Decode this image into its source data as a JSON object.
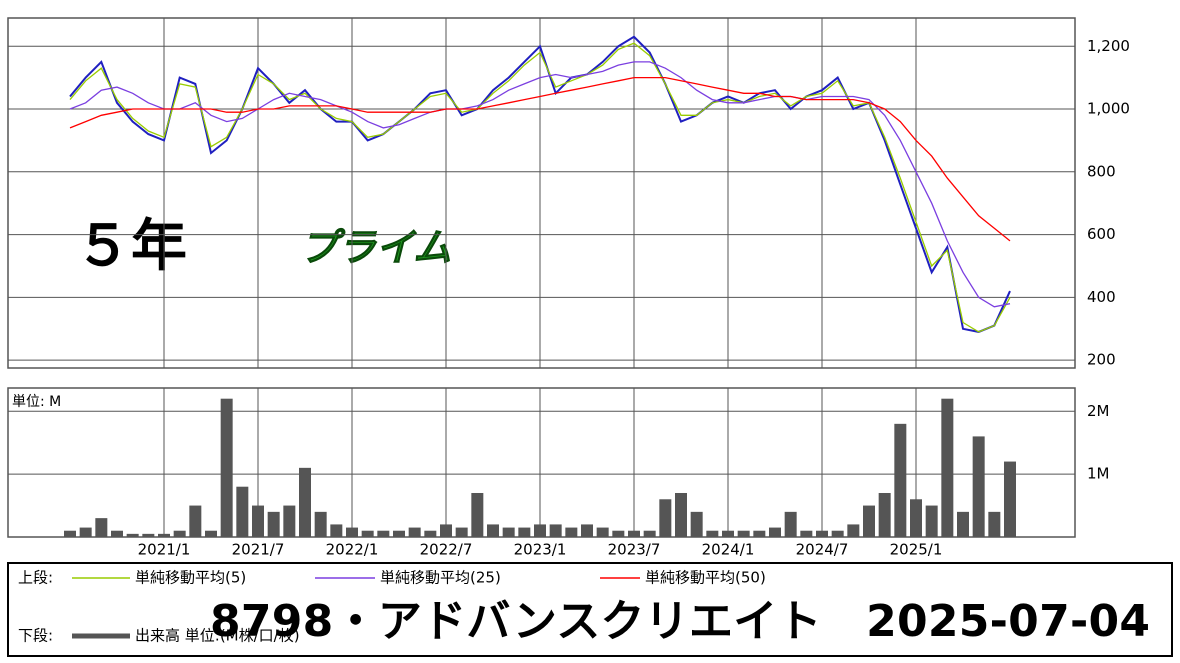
{
  "chart_data": [
    {
      "type": "line",
      "title": "8798・アドバンスクリエイト　2025-07-04",
      "annotations": [
        "５年",
        "プライム",
        "上段:"
      ],
      "ylim": [
        175,
        1290
      ],
      "yticks": [
        200,
        400,
        600,
        800,
        {
          "value": 1000,
          "label": "1,000"
        },
        {
          "value": 1200,
          "label": "1,200"
        }
      ],
      "grid": true,
      "series": [
        {
          "color": "#2020c0",
          "values": [
            1040,
            1100,
            1150,
            1020,
            960,
            920,
            900,
            1100,
            1080,
            860,
            900,
            1000,
            1130,
            1080,
            1020,
            1060,
            1000,
            960,
            960,
            900,
            920,
            960,
            1000,
            1050,
            1060,
            980,
            1000,
            1060,
            1100,
            1150,
            1200,
            1050,
            1100,
            1110,
            1150,
            1200,
            1230,
            1180,
            1080,
            960,
            980,
            1020,
            1040,
            1020,
            1050,
            1060,
            1000,
            1040,
            1060,
            1100,
            1000,
            1020,
            900,
            760,
            620,
            480,
            560,
            300,
            290,
            310,
            420
          ]
        },
        {
          "name": "単純移動平均(5)",
          "color": "#99cc00",
          "values": [
            1030,
            1090,
            1130,
            1030,
            970,
            930,
            910,
            1080,
            1070,
            880,
            910,
            1000,
            1110,
            1080,
            1030,
            1050,
            1000,
            970,
            960,
            910,
            920,
            960,
            1000,
            1040,
            1050,
            990,
            1000,
            1050,
            1090,
            1140,
            1180,
            1070,
            1090,
            1110,
            1140,
            1190,
            1210,
            1170,
            1080,
            980,
            980,
            1020,
            1030,
            1020,
            1040,
            1050,
            1010,
            1040,
            1050,
            1090,
            1010,
            1020,
            910,
            780,
            640,
            500,
            550,
            320,
            290,
            310,
            400
          ]
        },
        {
          "name": "単純移動平均(25)",
          "color": "#7b3fe0",
          "values": [
            1000,
            1020,
            1060,
            1070,
            1050,
            1020,
            1000,
            1000,
            1020,
            980,
            960,
            970,
            1000,
            1030,
            1050,
            1040,
            1030,
            1010,
            990,
            960,
            940,
            950,
            970,
            990,
            1000,
            1000,
            1010,
            1030,
            1060,
            1080,
            1100,
            1110,
            1100,
            1110,
            1120,
            1140,
            1150,
            1150,
            1130,
            1100,
            1060,
            1030,
            1020,
            1020,
            1030,
            1040,
            1040,
            1030,
            1040,
            1040,
            1040,
            1030,
            980,
            900,
            800,
            700,
            580,
            480,
            400,
            370,
            380
          ]
        },
        {
          "name": "単純移動平均(50)",
          "color": "#ff0000",
          "values": [
            940,
            960,
            980,
            990,
            1000,
            1000,
            1000,
            1000,
            1000,
            1000,
            990,
            990,
            1000,
            1000,
            1010,
            1010,
            1010,
            1010,
            1000,
            990,
            990,
            990,
            990,
            990,
            1000,
            1000,
            1000,
            1010,
            1020,
            1030,
            1040,
            1050,
            1060,
            1070,
            1080,
            1090,
            1100,
            1100,
            1100,
            1090,
            1080,
            1070,
            1060,
            1050,
            1050,
            1040,
            1040,
            1030,
            1030,
            1030,
            1030,
            1020,
            1000,
            960,
            900,
            850,
            780,
            720,
            660,
            620,
            580
          ]
        }
      ]
    },
    {
      "type": "bar",
      "ylabel": "単位: M",
      "annotations": [
        "下段:"
      ],
      "categories": [
        null,
        null,
        null,
        null,
        null,
        null,
        "2021/1",
        null,
        null,
        null,
        null,
        null,
        "2021/7",
        null,
        null,
        null,
        null,
        null,
        "2022/1",
        null,
        null,
        null,
        null,
        null,
        "2022/7",
        null,
        null,
        null,
        null,
        null,
        "2023/1",
        null,
        null,
        null,
        null,
        null,
        "2023/7",
        null,
        null,
        null,
        null,
        null,
        "2024/1",
        null,
        null,
        null,
        null,
        null,
        "2024/7",
        null,
        null,
        null,
        null,
        null,
        "2025/1",
        null,
        null,
        null,
        null,
        null,
        null
      ],
      "ylim": [
        0,
        2.37
      ],
      "yticks": [
        {
          "value": 1,
          "label": "1M"
        },
        {
          "value": 2,
          "label": "2M"
        }
      ],
      "grid": true,
      "series": [
        {
          "name": "出来高 単位:(M株/口/枚)",
          "color": "#555555",
          "values": [
            0.1,
            0.15,
            0.3,
            0.1,
            0.05,
            0.05,
            0.05,
            0.1,
            0.5,
            0.1,
            2.2,
            0.8,
            0.5,
            0.4,
            0.5,
            1.1,
            0.4,
            0.2,
            0.15,
            0.1,
            0.1,
            0.1,
            0.15,
            0.1,
            0.2,
            0.15,
            0.7,
            0.2,
            0.15,
            0.15,
            0.2,
            0.2,
            0.15,
            0.2,
            0.15,
            0.1,
            0.1,
            0.1,
            0.6,
            0.7,
            0.4,
            0.1,
            0.1,
            0.1,
            0.1,
            0.15,
            0.4,
            0.1,
            0.1,
            0.1,
            0.2,
            0.5,
            0.7,
            1.8,
            0.6,
            0.5,
            2.2,
            0.4,
            1.6,
            0.4,
            1.2
          ]
        }
      ]
    }
  ]
}
